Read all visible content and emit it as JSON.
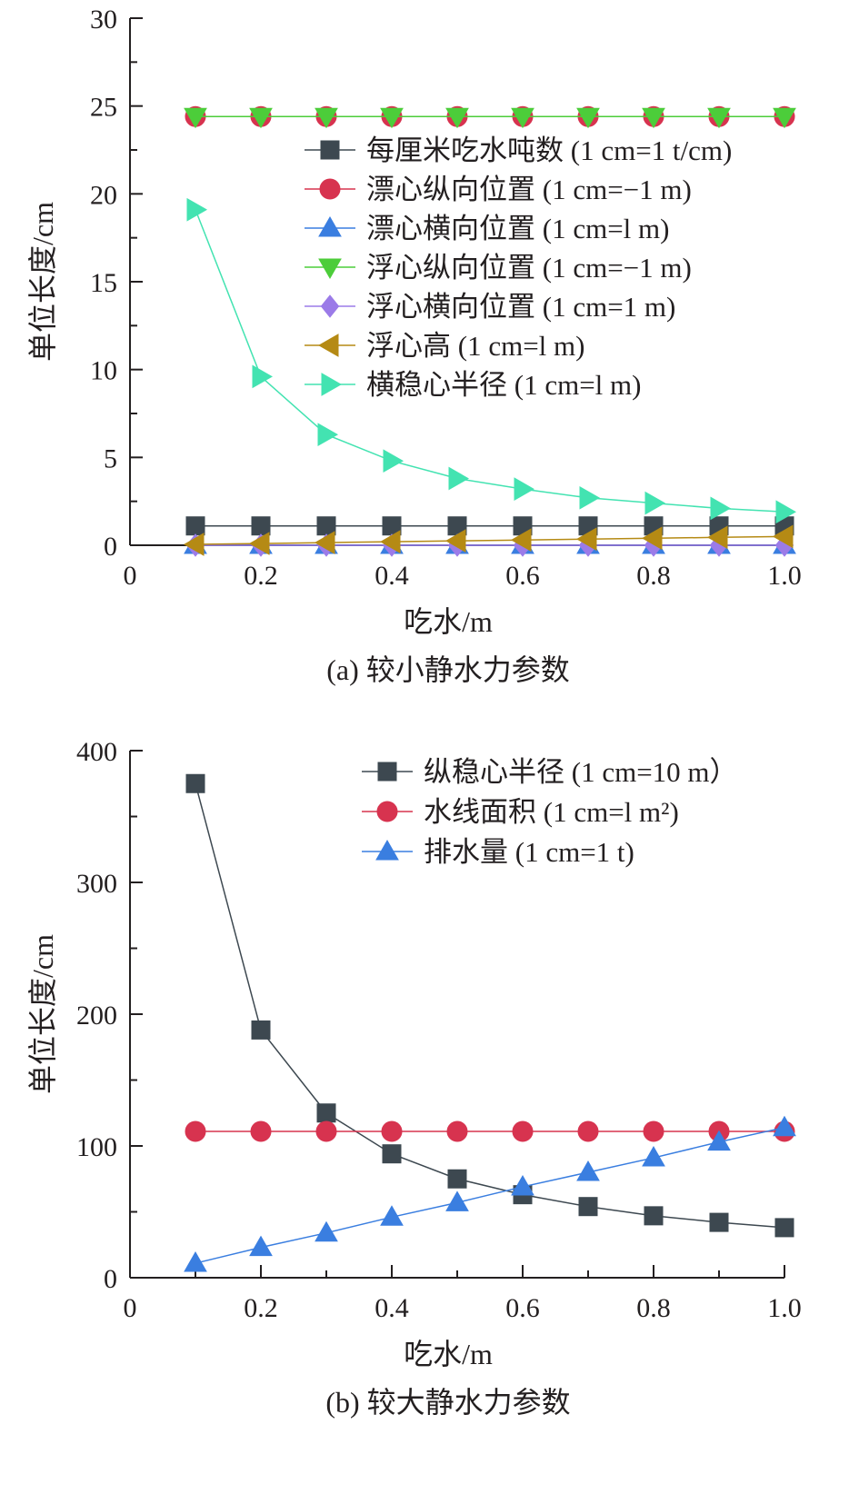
{
  "chart_data": [
    {
      "type": "line",
      "caption": "(a) 较小静水力参数",
      "xlabel": "吃水/m",
      "ylabel": "单位长度/cm",
      "xlim": [
        0,
        1.0
      ],
      "ylim": [
        0,
        30
      ],
      "xticks": [
        "0",
        "0.2",
        "0.4",
        "0.6",
        "0.8",
        "1.0"
      ],
      "yticks": [
        "0",
        "5",
        "10",
        "15",
        "20",
        "25",
        "30"
      ],
      "legend_position": "right",
      "x": [
        0.1,
        0.2,
        0.3,
        0.4,
        0.5,
        0.6,
        0.7,
        0.8,
        0.9,
        1.0
      ],
      "series": [
        {
          "name": "每厘米吃水吨数 (1 cm=1 t/cm)",
          "marker": "square",
          "color": "#3d4850",
          "values": [
            1.1,
            1.1,
            1.1,
            1.1,
            1.1,
            1.1,
            1.1,
            1.1,
            1.1,
            1.1
          ]
        },
        {
          "name": "漂心纵向位置 (1 cm=−1 m)",
          "marker": "circle",
          "color": "#d7334f",
          "values": [
            24.4,
            24.4,
            24.4,
            24.4,
            24.4,
            24.4,
            24.4,
            24.4,
            24.4,
            24.4
          ]
        },
        {
          "name": "漂心横向位置 (1 cm=l m)",
          "marker": "triangle-up",
          "color": "#3a7ee0",
          "values": [
            0,
            0,
            0,
            0,
            0,
            0,
            0,
            0,
            0,
            0
          ]
        },
        {
          "name": "浮心纵向位置 (1 cm=−1 m)",
          "marker": "triangle-down",
          "color": "#4ccd3a",
          "values": [
            24.4,
            24.4,
            24.4,
            24.4,
            24.4,
            24.4,
            24.4,
            24.4,
            24.4,
            24.4
          ]
        },
        {
          "name": "浮心横向位置 (1 cm=1 m)",
          "marker": "diamond",
          "color": "#9b7be8",
          "values": [
            0,
            0,
            0,
            0,
            0,
            0,
            0,
            0,
            0,
            0
          ]
        },
        {
          "name": "浮心高 (1 cm=l m)",
          "marker": "triangle-left",
          "color": "#b58a14",
          "values": [
            0.05,
            0.1,
            0.15,
            0.2,
            0.25,
            0.3,
            0.35,
            0.4,
            0.45,
            0.5
          ]
        },
        {
          "name": "横稳心半径 (1 cm=l m)",
          "marker": "triangle-right",
          "color": "#43e3b1",
          "values": [
            19.1,
            9.6,
            6.3,
            4.8,
            3.8,
            3.2,
            2.7,
            2.4,
            2.1,
            1.9
          ]
        }
      ]
    },
    {
      "type": "line",
      "caption": "(b) 较大静水力参数",
      "xlabel": "吃水/m",
      "ylabel": "单位长度/cm",
      "xlim": [
        0,
        1.0
      ],
      "ylim": [
        0,
        400
      ],
      "xticks": [
        "0",
        "0.2",
        "0.4",
        "0.6",
        "0.8",
        "1.0"
      ],
      "yticks": [
        "0",
        "100",
        "200",
        "300",
        "400"
      ],
      "legend_position": "top-right",
      "x": [
        0.1,
        0.2,
        0.3,
        0.4,
        0.5,
        0.6,
        0.7,
        0.8,
        0.9,
        1.0
      ],
      "series": [
        {
          "name": "纵稳心半径 (1 cm=10 m）",
          "marker": "square",
          "color": "#3d4850",
          "values": [
            375,
            188,
            125,
            94,
            75,
            63,
            54,
            47,
            42,
            38
          ]
        },
        {
          "name": "水线面积 (1 cm=l m²)",
          "marker": "circle",
          "color": "#d7334f",
          "values": [
            111,
            111,
            111,
            111,
            111,
            111,
            111,
            111,
            111,
            111
          ]
        },
        {
          "name": "排水量 (1 cm=1 t)",
          "marker": "triangle-up",
          "color": "#3a7ee0",
          "values": [
            11,
            23,
            34,
            46,
            57,
            69,
            80,
            91,
            103,
            114
          ]
        }
      ]
    }
  ]
}
